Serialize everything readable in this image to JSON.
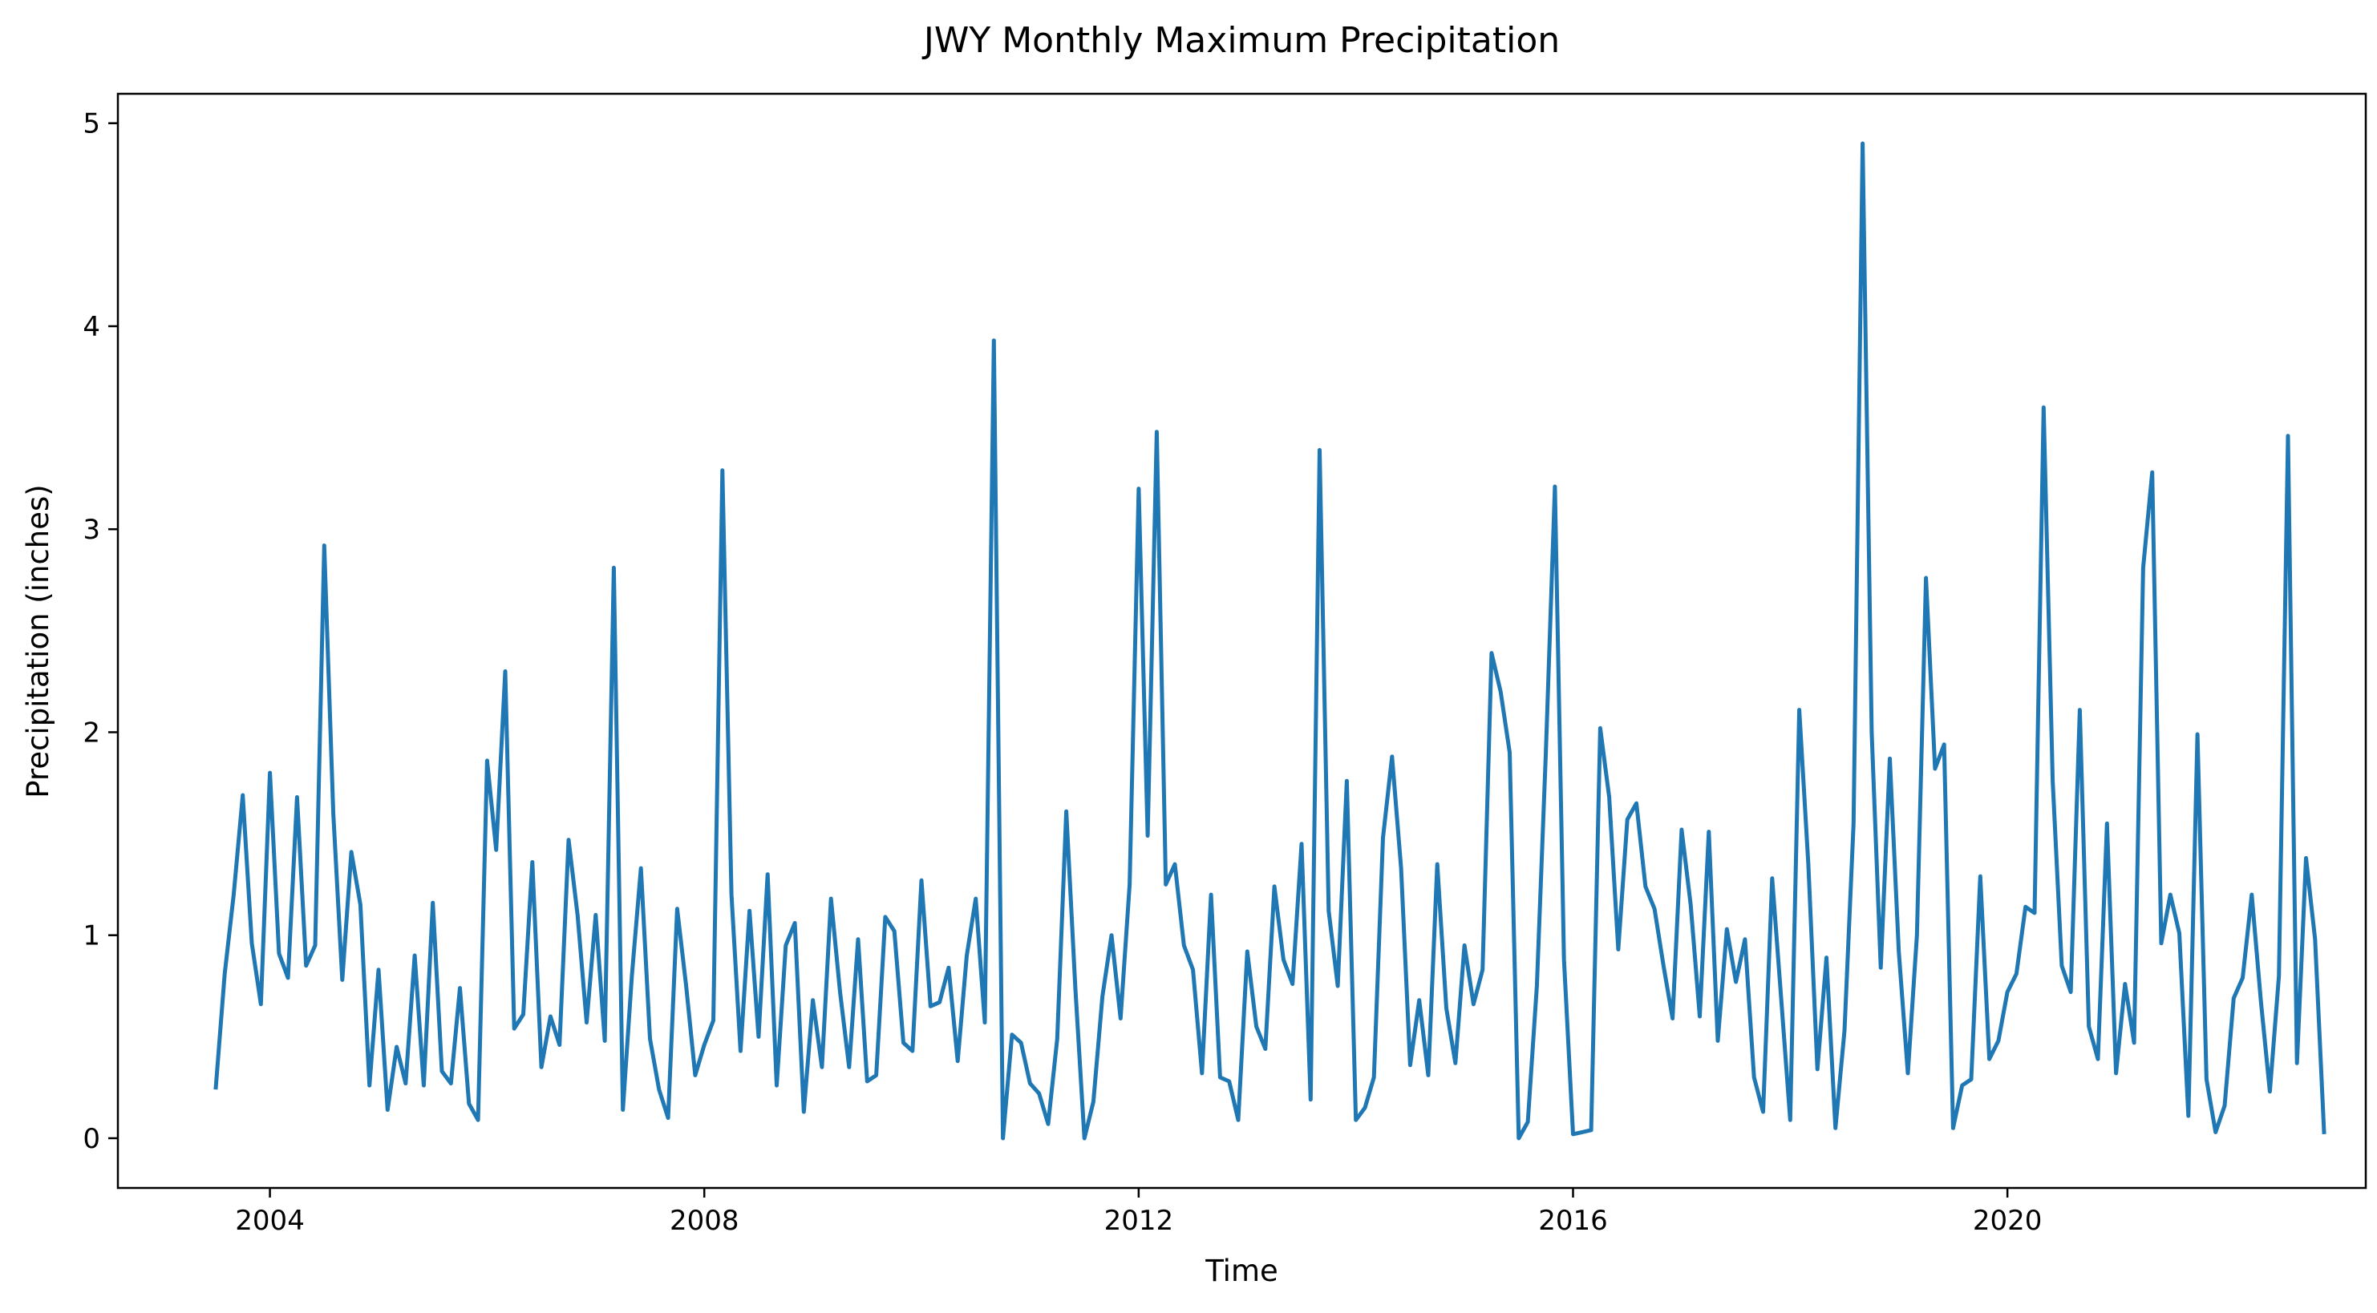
{
  "chart_data": {
    "type": "line",
    "title": "JWY Monthly Maximum Precipitation",
    "xlabel": "Time",
    "ylabel": "Precipitation (inches)",
    "xlim": [
      2002.6,
      2023.3
    ],
    "ylim": [
      -0.245,
      5.145
    ],
    "x_ticks": [
      2004,
      2008,
      2012,
      2016,
      2020
    ],
    "x_tick_labels": [
      "2004",
      "2008",
      "2012",
      "2016",
      "2020"
    ],
    "y_ticks": [
      0,
      1,
      2,
      3,
      4,
      5
    ],
    "y_tick_labels": [
      "0",
      "1",
      "2",
      "3",
      "4",
      "5"
    ],
    "grid": false,
    "legend": "none",
    "line_color": "#1f77b4",
    "x_start": "2003-07",
    "x_end": "2022-12",
    "series": [
      {
        "values": [
          0.24,
          0.81,
          1.2,
          1.69,
          0.96,
          0.66,
          1.8,
          0.91,
          0.79,
          1.68,
          0.85,
          0.95,
          2.92,
          1.6,
          0.78,
          1.41,
          1.15,
          0.26,
          0.83,
          0.14,
          0.45,
          0.27,
          0.9,
          0.26,
          1.16,
          0.33,
          0.27,
          0.74,
          0.17,
          0.09,
          1.86,
          1.42,
          2.3,
          0.54,
          0.61,
          1.36,
          0.35,
          0.6,
          0.46,
          1.47,
          1.1,
          0.57,
          1.1,
          0.48,
          2.81,
          0.14,
          0.8,
          1.33,
          0.49,
          0.24,
          0.1,
          1.13,
          0.75,
          0.31,
          0.46,
          0.58,
          3.29,
          1.2,
          0.43,
          1.12,
          0.5,
          1.3,
          0.26,
          0.95,
          1.06,
          0.13,
          0.68,
          0.35,
          1.18,
          0.72,
          0.35,
          0.98,
          0.28,
          0.31,
          1.09,
          1.02,
          0.47,
          0.43,
          1.27,
          0.65,
          0.67,
          0.84,
          0.38,
          0.9,
          1.18,
          0.57,
          3.93,
          0.0,
          0.51,
          0.47,
          0.27,
          0.22,
          0.07,
          0.49,
          1.61,
          0.74,
          0.0,
          0.18,
          0.7,
          1.0,
          0.59,
          1.25,
          3.2,
          1.49,
          3.48,
          1.25,
          1.35,
          0.95,
          0.83,
          0.32,
          1.2,
          0.3,
          0.28,
          0.09,
          0.92,
          0.55,
          0.44,
          1.24,
          0.88,
          0.76,
          1.45,
          0.19,
          3.39,
          1.12,
          0.75,
          1.76,
          0.09,
          0.15,
          0.3,
          1.48,
          1.88,
          1.33,
          0.36,
          0.68,
          0.31,
          1.35,
          0.64,
          0.37,
          0.95,
          0.66,
          0.83,
          2.39,
          2.2,
          1.9,
          0.0,
          0.08,
          0.75,
          1.9,
          3.21,
          0.88,
          0.02,
          0.03,
          0.04,
          2.02,
          1.68,
          0.93,
          1.57,
          1.65,
          1.24,
          1.13,
          0.85,
          0.59,
          1.52,
          1.15,
          0.6,
          1.51,
          0.48,
          1.03,
          0.77,
          0.98,
          0.3,
          0.13,
          1.28,
          0.69,
          0.09,
          2.11,
          1.35,
          0.34,
          0.89,
          0.05,
          0.53,
          1.55,
          4.9,
          2.0,
          0.84,
          1.87,
          0.92,
          0.32,
          1.0,
          2.76,
          1.82,
          1.94,
          0.05,
          0.26,
          0.29,
          1.29,
          0.39,
          0.48,
          0.72,
          0.81,
          1.14,
          1.11,
          3.6,
          1.76,
          0.85,
          0.72,
          2.11,
          0.55,
          0.39,
          1.55,
          0.32,
          0.76,
          0.47,
          2.81,
          3.28,
          0.96,
          1.2,
          1.01,
          0.11,
          1.99,
          0.29,
          0.03,
          0.16,
          0.69,
          0.79,
          1.2,
          0.68,
          0.23,
          0.8,
          3.46,
          0.37,
          1.38,
          0.98,
          0.02
        ]
      }
    ]
  }
}
